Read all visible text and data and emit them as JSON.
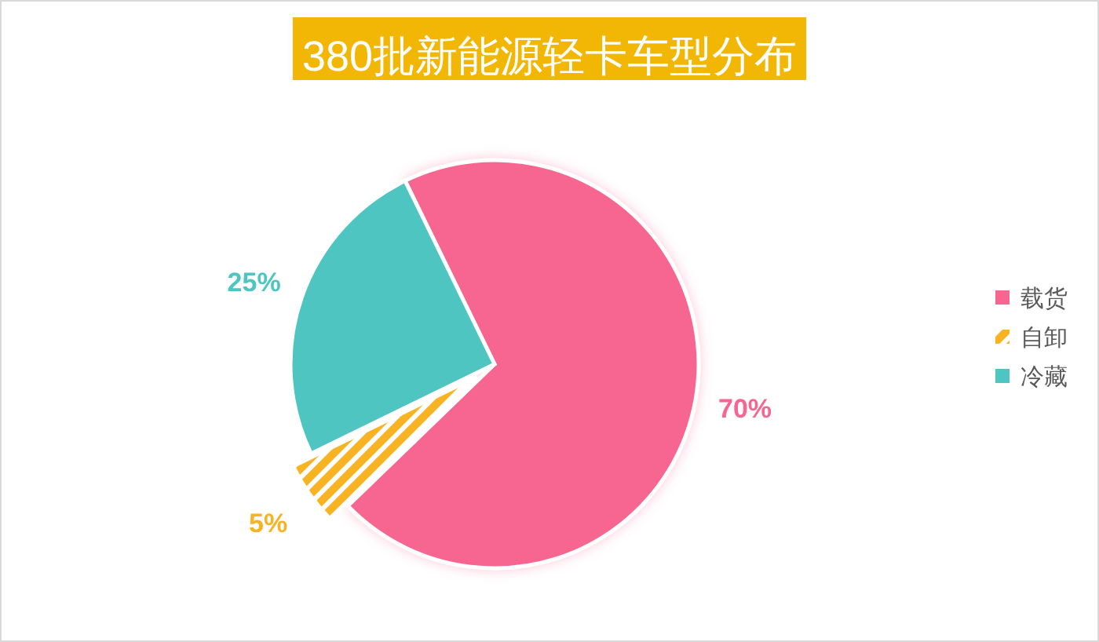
{
  "chart_data": {
    "type": "pie",
    "title": "380批新能源轻卡车型分布",
    "categories": [
      "载货",
      "自卸",
      "冷藏"
    ],
    "values": [
      70,
      5,
      25
    ],
    "colors": [
      "#f76591",
      "#f8b323",
      "#4fc5c2"
    ],
    "value_labels": [
      "70%",
      "5%",
      "25%"
    ],
    "legend": "right"
  }
}
